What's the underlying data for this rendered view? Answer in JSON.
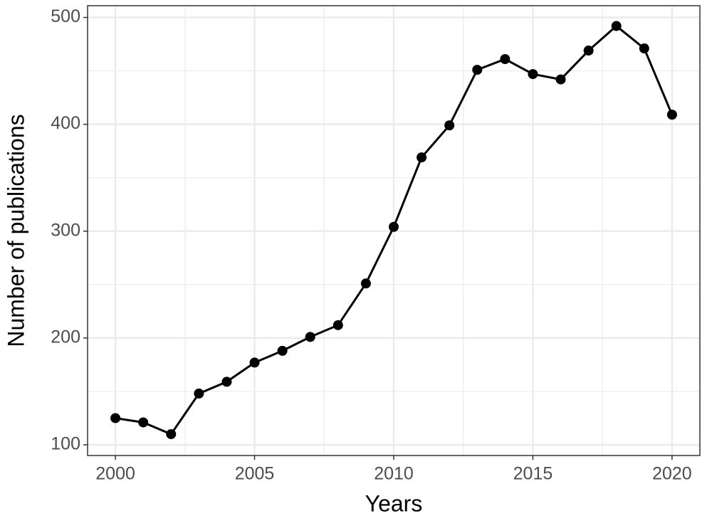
{
  "chart_data": {
    "type": "line",
    "x_label": "Years",
    "y_label": "Number of publications",
    "x": [
      2000,
      2001,
      2002,
      2003,
      2004,
      2005,
      2006,
      2007,
      2008,
      2009,
      2010,
      2011,
      2012,
      2013,
      2014,
      2015,
      2016,
      2017,
      2018,
      2019,
      2020
    ],
    "values": [
      125,
      121,
      110,
      148,
      159,
      177,
      188,
      201,
      212,
      251,
      304,
      369,
      399,
      451,
      461,
      447,
      442,
      469,
      492,
      471,
      409
    ],
    "color": "#000000",
    "xlim": [
      1999,
      2021
    ],
    "xticks": [
      2000,
      2005,
      2010,
      2015,
      2020
    ],
    "ylim": [
      90,
      511
    ],
    "yticks": [
      100,
      200,
      300,
      400,
      500
    ],
    "grid": true
  }
}
